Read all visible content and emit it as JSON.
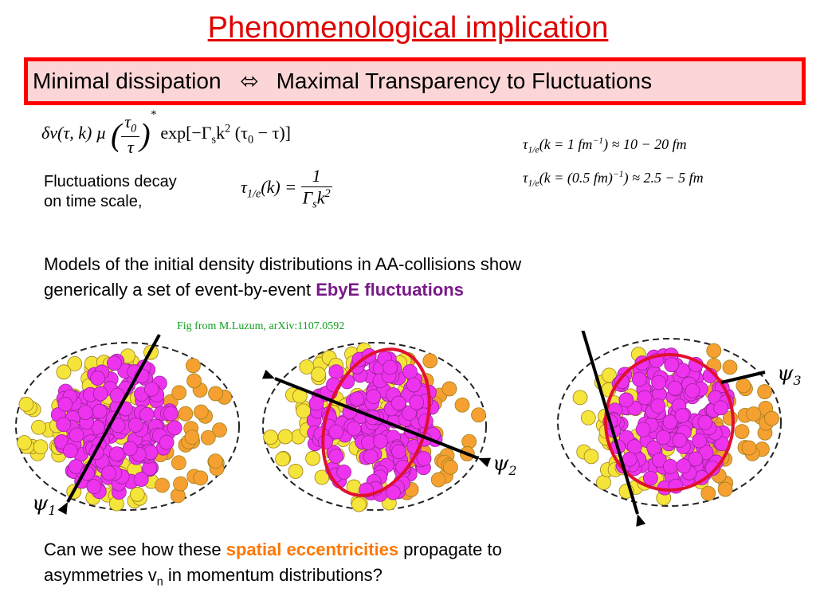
{
  "title": "Phenomenological implication",
  "banner": {
    "left": "Minimal dissipation",
    "arrow": "⬄",
    "right": "Maximal Transparency to Fluctuations"
  },
  "formula_main": {
    "lhs": "δv(τ, k) µ",
    "numerator": [
      "τ",
      "0"
    ],
    "denominator": "τ",
    "power": "*",
    "exp": [
      "exp[−Γ",
      "s",
      "k",
      "2",
      " (τ",
      "0",
      " − τ)]"
    ]
  },
  "decay_text": [
    "Fluctuations decay",
    "on time scale,"
  ],
  "formula_decay": {
    "lhs": [
      "τ",
      "1/e",
      "(k) ="
    ],
    "numerator": "1",
    "denominator": [
      "Γ",
      "s",
      "k",
      "2"
    ]
  },
  "formula_values": [
    [
      "τ",
      "1/e",
      "(k = 1 fm",
      "−1",
      ") ≈ 10 − 20 fm"
    ],
    [
      "τ",
      "1/e",
      "(k = (0.5 fm)",
      "−1",
      ") ≈ 2.5 − 5 fm"
    ]
  ],
  "models_text": {
    "lines": [
      "Models of the initial density distributions in AA-collisions show",
      "generically a set of event-by-event "
    ],
    "highlight": "EbyE fluctuations"
  },
  "figure": {
    "caption": "Fig from M.Luzum, arXiv:1107.0592",
    "labels": [
      [
        "ψ",
        "1"
      ],
      [
        "ψ",
        "2"
      ],
      [
        "ψ",
        "3"
      ]
    ]
  },
  "question": {
    "start": "Can we see how these ",
    "highlight": "spatial eccentricities",
    "end": " propagate to",
    "line2": "asymmetries v",
    "sub": "n",
    "line2_end": " in momentum distributions?"
  }
}
